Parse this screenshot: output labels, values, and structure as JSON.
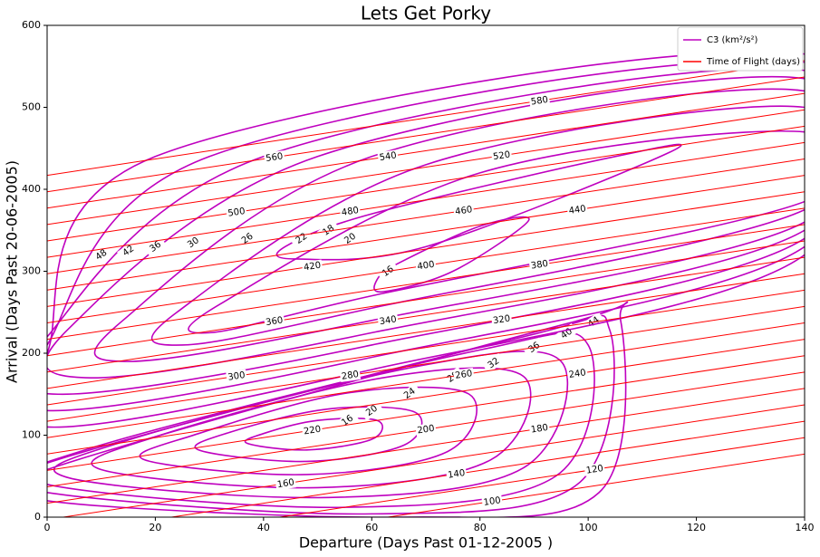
{
  "chart_data": {
    "type": "contour",
    "title": "Lets Get Porky",
    "xlabel": "Departure (Days Past 01-12-2005 )",
    "ylabel": "Arrival (Days Past 20-06-2005)",
    "xlim": [
      0,
      140
    ],
    "ylim": [
      0,
      600
    ],
    "xticks": [
      0,
      20,
      40,
      60,
      80,
      100,
      120,
      140
    ],
    "yticks": [
      0,
      100,
      200,
      300,
      400,
      500,
      600
    ],
    "legend": "upper right",
    "series": [
      {
        "name": "C3 (km²/s²)",
        "color": "#bf00bf",
        "contours": [
          {
            "level": 16,
            "x": [
              37,
              48,
              60,
              61,
              50,
              40
            ],
            "y": [
              90,
              82,
              95,
              118,
              118,
              102
            ]
          },
          {
            "level": 20,
            "x": [
              28,
              48,
              66,
              68,
              52,
              34
            ],
            "y": [
              82,
              68,
              88,
              128,
              132,
              104
            ]
          },
          {
            "level": 24,
            "x": [
              18,
              48,
              74,
              78,
              56,
              28
            ],
            "y": [
              70,
              52,
              80,
              150,
              152,
              102
            ]
          },
          {
            "level": 28,
            "x": [
              10,
              50,
              82,
              88,
              62,
              20
            ],
            "y": [
              58,
              36,
              70,
              172,
              170,
              98
            ]
          },
          {
            "level": 32,
            "x": [
              4,
              52,
              88,
              95,
              70,
              14
            ],
            "y": [
              48,
              24,
              60,
              190,
              186,
              92
            ]
          },
          {
            "level": 36,
            "x": [
              0,
              55,
              94,
              100,
              80,
              8
            ],
            "y": [
              40,
              12,
              50,
              210,
              204,
              84
            ]
          },
          {
            "level": 40,
            "x": [
              0,
              60,
              98,
              104,
              88,
              0
            ],
            "y": [
              30,
              4,
              40,
              228,
              220,
              66
            ]
          },
          {
            "level": 44,
            "x": [
              0,
              66,
              102,
              106,
              96,
              0
            ],
            "y": [
              20,
              0,
              30,
              240,
              236,
              58
            ]
          },
          {
            "level": 16,
            "x": [
              62,
              75,
              89,
              80,
              65,
              61
            ],
            "y": [
              275,
              300,
              362,
              355,
              310,
              290
            ]
          },
          {
            "level": 18,
            "x": [
              46,
              70,
              115,
              105,
              60,
              44
            ],
            "y": [
              315,
              330,
              445,
              440,
              370,
              330
            ]
          },
          {
            "level": 20,
            "x": [
              30,
              60,
              140,
              140,
              80,
              32
            ],
            "y": [
              225,
              270,
              385,
              470,
              420,
              260
            ]
          },
          {
            "level": 22,
            "x": [
              25,
              60,
              140,
              140,
              70,
              24
            ],
            "y": [
              210,
              255,
              375,
              500,
              430,
              250
            ]
          },
          {
            "level": 26,
            "x": [
              15,
              60,
              140,
              140,
              60,
              14
            ],
            "y": [
              190,
              240,
              360,
              520,
              440,
              240
            ]
          },
          {
            "level": 30,
            "x": [
              8,
              60,
              140,
              140,
              50,
              4
            ],
            "y": [
              170,
              225,
              350,
              535,
              440,
              230
            ]
          },
          {
            "level": 36,
            "x": [
              2,
              60,
              140,
              140,
              40,
              0
            ],
            "y": [
              150,
              210,
              340,
              545,
              440,
              220
            ]
          },
          {
            "level": 42,
            "x": [
              0,
              60,
              140,
              140,
              30,
              0
            ],
            "y": [
              130,
              195,
              330,
              555,
              440,
              210
            ]
          },
          {
            "level": 48,
            "x": [
              0,
              60,
              140,
              140,
              20,
              0
            ],
            "y": [
              110,
              180,
              320,
              565,
              440,
              200
            ]
          }
        ]
      },
      {
        "name": "Time of Flight (days)",
        "color": "#ff0000",
        "contours": [
          {
            "level": 100,
            "x": [
              0,
              140
            ],
            "y": [
              -63,
              77
            ]
          },
          {
            "level": 120,
            "x": [
              0,
              140
            ],
            "y": [
              -43,
              97
            ]
          },
          {
            "level": 140,
            "x": [
              0,
              140
            ],
            "y": [
              -23,
              117
            ]
          },
          {
            "level": 160,
            "x": [
              0,
              140
            ],
            "y": [
              -3,
              137
            ]
          },
          {
            "level": 180,
            "x": [
              0,
              140
            ],
            "y": [
              17,
              157
            ]
          },
          {
            "level": 200,
            "x": [
              0,
              140
            ],
            "y": [
              37,
              177
            ]
          },
          {
            "level": 220,
            "x": [
              0,
              140
            ],
            "y": [
              57,
              197
            ]
          },
          {
            "level": 240,
            "x": [
              0,
              140
            ],
            "y": [
              77,
              217
            ]
          },
          {
            "level": 260,
            "x": [
              0,
              140
            ],
            "y": [
              97,
              237
            ]
          },
          {
            "level": 280,
            "x": [
              0,
              140
            ],
            "y": [
              117,
              257
            ]
          },
          {
            "level": 300,
            "x": [
              0,
              140
            ],
            "y": [
              137,
              277
            ]
          },
          {
            "level": 320,
            "x": [
              0,
              140
            ],
            "y": [
              157,
              297
            ]
          },
          {
            "level": 340,
            "x": [
              0,
              140
            ],
            "y": [
              177,
              317
            ]
          },
          {
            "level": 360,
            "x": [
              0,
              140
            ],
            "y": [
              197,
              337
            ]
          },
          {
            "level": 380,
            "x": [
              0,
              140
            ],
            "y": [
              217,
              357
            ]
          },
          {
            "level": 400,
            "x": [
              0,
              140
            ],
            "y": [
              237,
              377
            ]
          },
          {
            "level": 420,
            "x": [
              0,
              140
            ],
            "y": [
              257,
              397
            ]
          },
          {
            "level": 440,
            "x": [
              0,
              140
            ],
            "y": [
              277,
              417
            ]
          },
          {
            "level": 460,
            "x": [
              0,
              140
            ],
            "y": [
              297,
              437
            ]
          },
          {
            "level": 480,
            "x": [
              0,
              140
            ],
            "y": [
              317,
              457
            ]
          },
          {
            "level": 500,
            "x": [
              0,
              140
            ],
            "y": [
              337,
              477
            ]
          },
          {
            "level": 520,
            "x": [
              0,
              140
            ],
            "y": [
              357,
              497
            ]
          },
          {
            "level": 540,
            "x": [
              0,
              140
            ],
            "y": [
              377,
              517
            ]
          },
          {
            "level": 560,
            "x": [
              0,
              140
            ],
            "y": [
              397,
              537
            ]
          },
          {
            "level": 580,
            "x": [
              0,
              140
            ],
            "y": [
              417,
              557
            ]
          }
        ]
      }
    ]
  }
}
